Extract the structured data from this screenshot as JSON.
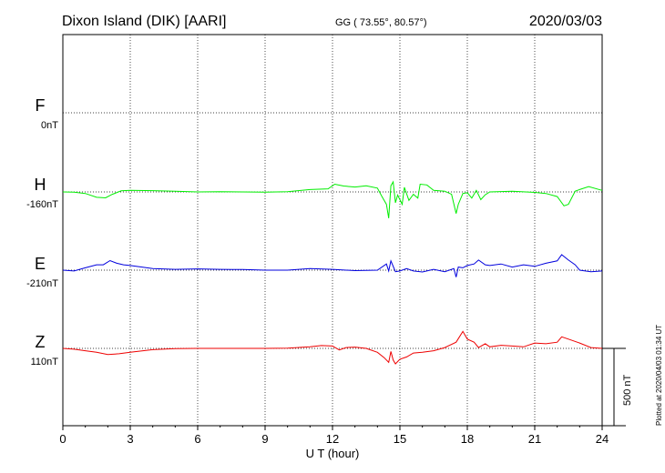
{
  "header": {
    "station": "Dixon Island (DIK)  [AARI]",
    "coords": "GG ( 73.55°,  80.57°)",
    "date": "2020/03/03"
  },
  "side_note": "Plotted at 2020/04/03 01:34 UT",
  "scale_label": "500 nT",
  "chart_data": {
    "type": "line",
    "xlabel": "U T (hour)",
    "xlim": [
      0,
      24
    ],
    "x_ticks": [
      "0",
      "3",
      "6",
      "9",
      "12",
      "15",
      "18",
      "21",
      "24"
    ],
    "grid": true,
    "scale_bar_nT": 500,
    "series": [
      {
        "name": "F",
        "baseline_label": "0nT",
        "color": "#ffaa00",
        "baseline_nT": 0,
        "points": []
      },
      {
        "name": "H",
        "baseline_label": "-160nT",
        "color": "#00ee00",
        "baseline_nT": -160,
        "points": [
          [
            0,
            -160
          ],
          [
            0.5,
            -162
          ],
          [
            1.0,
            -170
          ],
          [
            1.5,
            -195
          ],
          [
            1.9,
            -198
          ],
          [
            2.2,
            -175
          ],
          [
            2.6,
            -153
          ],
          [
            3.0,
            -150
          ],
          [
            4.0,
            -152
          ],
          [
            5.0,
            -155
          ],
          [
            6.0,
            -160
          ],
          [
            7.0,
            -158
          ],
          [
            8.0,
            -160
          ],
          [
            9.0,
            -162
          ],
          [
            10.0,
            -158
          ],
          [
            11.0,
            -145
          ],
          [
            11.8,
            -140
          ],
          [
            12.1,
            -110
          ],
          [
            12.5,
            -122
          ],
          [
            13.0,
            -128
          ],
          [
            13.5,
            -120
          ],
          [
            14.0,
            -135
          ],
          [
            14.2,
            -190
          ],
          [
            14.4,
            -240
          ],
          [
            14.5,
            -330
          ],
          [
            14.6,
            -120
          ],
          [
            14.7,
            -95
          ],
          [
            14.8,
            -230
          ],
          [
            14.9,
            -180
          ],
          [
            15.1,
            -240
          ],
          [
            15.2,
            -130
          ],
          [
            15.4,
            -215
          ],
          [
            15.6,
            -175
          ],
          [
            15.8,
            -200
          ],
          [
            15.9,
            -110
          ],
          [
            16.2,
            -115
          ],
          [
            16.5,
            -150
          ],
          [
            17.0,
            -155
          ],
          [
            17.3,
            -175
          ],
          [
            17.5,
            -300
          ],
          [
            17.6,
            -240
          ],
          [
            17.8,
            -170
          ],
          [
            18.0,
            -165
          ],
          [
            18.2,
            -200
          ],
          [
            18.4,
            -150
          ],
          [
            18.6,
            -210
          ],
          [
            18.8,
            -178
          ],
          [
            19.0,
            -160
          ],
          [
            20.0,
            -155
          ],
          [
            21.0,
            -163
          ],
          [
            21.5,
            -170
          ],
          [
            22.0,
            -190
          ],
          [
            22.3,
            -250
          ],
          [
            22.5,
            -240
          ],
          [
            22.8,
            -155
          ],
          [
            23.0,
            -145
          ],
          [
            23.4,
            -125
          ],
          [
            24.0,
            -150
          ]
        ]
      },
      {
        "name": "E",
        "baseline_label": "-210nT",
        "color": "#0000dd",
        "baseline_nT": -210,
        "points": [
          [
            0,
            -210
          ],
          [
            0.5,
            -215
          ],
          [
            1.0,
            -195
          ],
          [
            1.5,
            -175
          ],
          [
            1.8,
            -175
          ],
          [
            2.1,
            -148
          ],
          [
            2.4,
            -165
          ],
          [
            2.7,
            -175
          ],
          [
            3.0,
            -180
          ],
          [
            4.0,
            -200
          ],
          [
            5.0,
            -205
          ],
          [
            6.0,
            -202
          ],
          [
            7.0,
            -205
          ],
          [
            8.0,
            -206
          ],
          [
            9.0,
            -210
          ],
          [
            10.0,
            -210
          ],
          [
            11.0,
            -200
          ],
          [
            12.0,
            -205
          ],
          [
            13.0,
            -213
          ],
          [
            14.0,
            -210
          ],
          [
            14.4,
            -170
          ],
          [
            14.5,
            -215
          ],
          [
            14.6,
            -150
          ],
          [
            14.8,
            -220
          ],
          [
            15.0,
            -215
          ],
          [
            15.3,
            -200
          ],
          [
            15.6,
            -215
          ],
          [
            16.0,
            -222
          ],
          [
            16.5,
            -205
          ],
          [
            17.0,
            -220
          ],
          [
            17.4,
            -200
          ],
          [
            17.5,
            -255
          ],
          [
            17.6,
            -190
          ],
          [
            17.8,
            -195
          ],
          [
            18.0,
            -180
          ],
          [
            18.3,
            -170
          ],
          [
            18.5,
            -145
          ],
          [
            18.8,
            -175
          ],
          [
            19.0,
            -180
          ],
          [
            19.5,
            -170
          ],
          [
            20.0,
            -190
          ],
          [
            20.5,
            -175
          ],
          [
            21.0,
            -185
          ],
          [
            21.5,
            -165
          ],
          [
            22.0,
            -150
          ],
          [
            22.2,
            -110
          ],
          [
            22.5,
            -145
          ],
          [
            22.8,
            -175
          ],
          [
            23.0,
            -210
          ],
          [
            23.5,
            -220
          ],
          [
            24.0,
            -215
          ]
        ]
      },
      {
        "name": "Z",
        "baseline_label": "110nT",
        "color": "#ee0000",
        "baseline_nT": 110,
        "points": [
          [
            0,
            110
          ],
          [
            0.5,
            105
          ],
          [
            1.0,
            95
          ],
          [
            1.5,
            85
          ],
          [
            2.0,
            70
          ],
          [
            2.5,
            75
          ],
          [
            3.0,
            85
          ],
          [
            4.0,
            102
          ],
          [
            5.0,
            108
          ],
          [
            6.0,
            110
          ],
          [
            7.0,
            110
          ],
          [
            8.0,
            110
          ],
          [
            9.0,
            110
          ],
          [
            10.0,
            112
          ],
          [
            11.0,
            120
          ],
          [
            11.5,
            128
          ],
          [
            12.0,
            125
          ],
          [
            12.3,
            100
          ],
          [
            12.6,
            115
          ],
          [
            13.0,
            118
          ],
          [
            13.5,
            110
          ],
          [
            14.0,
            85
          ],
          [
            14.3,
            50
          ],
          [
            14.5,
            20
          ],
          [
            14.6,
            90
          ],
          [
            14.7,
            35
          ],
          [
            14.8,
            10
          ],
          [
            15.0,
            40
          ],
          [
            15.3,
            55
          ],
          [
            15.6,
            80
          ],
          [
            16.0,
            85
          ],
          [
            16.5,
            95
          ],
          [
            17.0,
            115
          ],
          [
            17.5,
            150
          ],
          [
            17.8,
            220
          ],
          [
            18.0,
            170
          ],
          [
            18.3,
            150
          ],
          [
            18.5,
            115
          ],
          [
            18.8,
            140
          ],
          [
            19.0,
            120
          ],
          [
            19.5,
            130
          ],
          [
            20.0,
            125
          ],
          [
            20.5,
            120
          ],
          [
            21.0,
            145
          ],
          [
            21.5,
            140
          ],
          [
            22.0,
            150
          ],
          [
            22.2,
            185
          ],
          [
            22.5,
            170
          ],
          [
            23.0,
            145
          ],
          [
            23.5,
            115
          ],
          [
            24.0,
            110
          ]
        ]
      }
    ]
  }
}
